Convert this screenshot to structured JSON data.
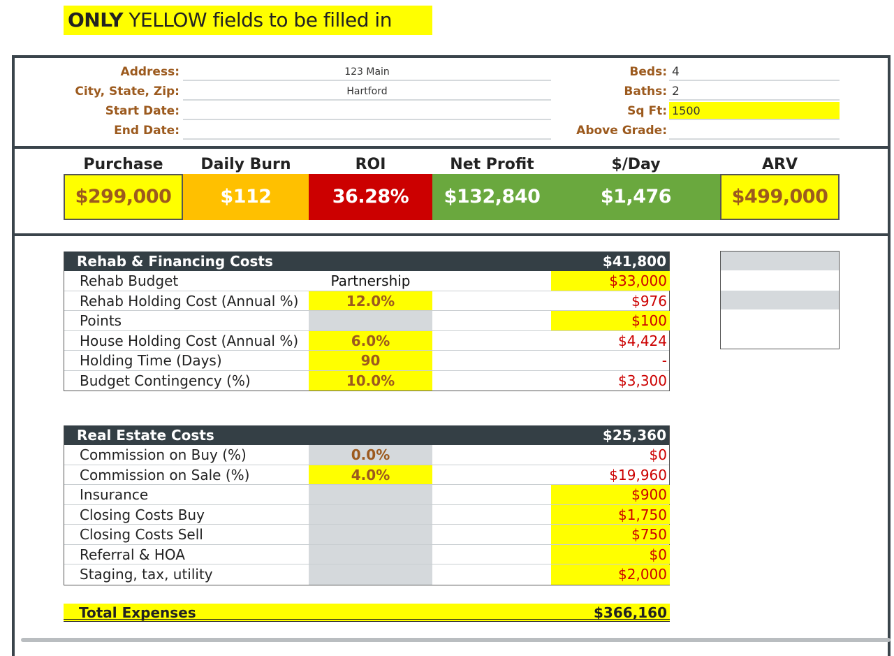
{
  "banner": {
    "bold": "ONLY",
    "rest": " YELLOW fields to be filled in"
  },
  "property": {
    "address_label": "Address:",
    "address_value": "123 Main",
    "city_label": "City, State, Zip:",
    "city_value": "Hartford",
    "start_label": "Start Date:",
    "start_value": "",
    "end_label": "End Date:",
    "end_value": "",
    "beds_label": "Beds:",
    "beds_value": "4",
    "baths_label": "Baths:",
    "baths_value": "2",
    "sqft_label": "Sq Ft:",
    "sqft_value": "1500",
    "above_label": "Above Grade:",
    "above_value": ""
  },
  "metrics": {
    "purchase": {
      "label": "Purchase",
      "value": "$299,000"
    },
    "daily_burn": {
      "label": "Daily Burn",
      "value": "$112"
    },
    "roi": {
      "label": "ROI",
      "value": "36.28%"
    },
    "net_profit": {
      "label": "Net Profit",
      "value": "$132,840"
    },
    "per_day": {
      "label": "$/Day",
      "value": "$1,476"
    },
    "arv": {
      "label": "ARV",
      "value": "$499,000"
    }
  },
  "colors": {
    "yellow": "#ffff00",
    "orange": "#ffc000",
    "red": "#cc0000",
    "green": "#6aa83e",
    "dark": "#343f45",
    "label_brown": "#9c5a1e"
  },
  "rehab": {
    "title": "Rehab & Financing Costs",
    "total": "$41,800",
    "rows": [
      {
        "label": "Rehab Budget",
        "mid": "Partnership",
        "value": "$33,000"
      },
      {
        "label": "Rehab Holding Cost (Annual %)",
        "mid": "12.0%",
        "value": "$976"
      },
      {
        "label": "Points",
        "mid": "",
        "value": "$100"
      },
      {
        "label": "House Holding Cost (Annual %)",
        "mid": "6.0%",
        "value": "$4,424"
      },
      {
        "label": "Holding Time (Days)",
        "mid": "90",
        "value": "-"
      },
      {
        "label": "Budget Contingency (%)",
        "mid": "10.0%",
        "value": "$3,300"
      }
    ]
  },
  "realestate": {
    "title": "Real Estate Costs",
    "total": "$25,360",
    "rows": [
      {
        "label": "Commission on Buy (%)",
        "mid": "0.0%",
        "value": "$0"
      },
      {
        "label": "Commission on Sale (%)",
        "mid": "4.0%",
        "value": "$19,960"
      },
      {
        "label": "Insurance",
        "mid": "",
        "value": "$900"
      },
      {
        "label": "Closing Costs Buy",
        "mid": "",
        "value": "$1,750"
      },
      {
        "label": "Closing Costs Sell",
        "mid": "",
        "value": "$750"
      },
      {
        "label": "Referral & HOA",
        "mid": "",
        "value": "$0"
      },
      {
        "label": "Staging, tax, utility",
        "mid": "",
        "value": "$2,000"
      }
    ]
  },
  "total_expenses": {
    "label": "Total Expenses",
    "value": "$366,160"
  }
}
